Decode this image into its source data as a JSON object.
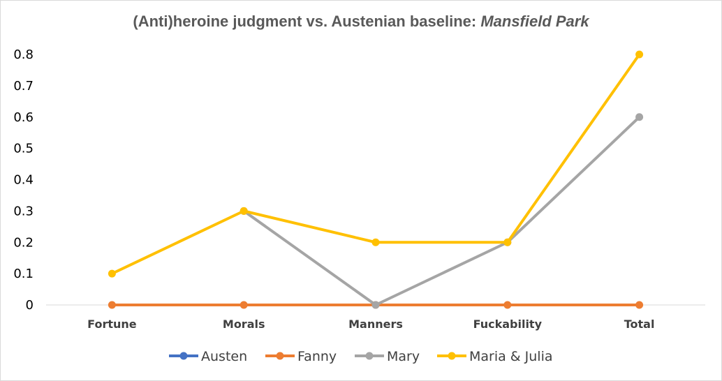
{
  "chart_data": {
    "type": "line",
    "title_main": "(Anti)heroine judgment vs. Austenian baseline: ",
    "title_italic": "Mansfield Park",
    "categories": [
      "Fortune",
      "Morals",
      "Manners",
      "Fuckability",
      "Total"
    ],
    "ylim": [
      0,
      0.8
    ],
    "yticks": [
      "0",
      "0.1",
      "0.2",
      "0.3",
      "0.4",
      "0.5",
      "0.6",
      "0.7",
      "0.8"
    ],
    "grid": false,
    "legend_position": "bottom",
    "series": [
      {
        "name": "Austen",
        "color": "#4472C4",
        "values": [
          null,
          null,
          null,
          null,
          null
        ]
      },
      {
        "name": "Fanny",
        "color": "#ED7D31",
        "values": [
          0,
          0,
          0,
          0,
          0
        ]
      },
      {
        "name": "Mary",
        "color": "#A5A5A5",
        "values": [
          null,
          0.3,
          0,
          0.2,
          0.6
        ]
      },
      {
        "name": "Maria & Julia",
        "color": "#FFC000",
        "values": [
          0.1,
          0.3,
          0.2,
          0.2,
          0.8
        ]
      }
    ]
  }
}
